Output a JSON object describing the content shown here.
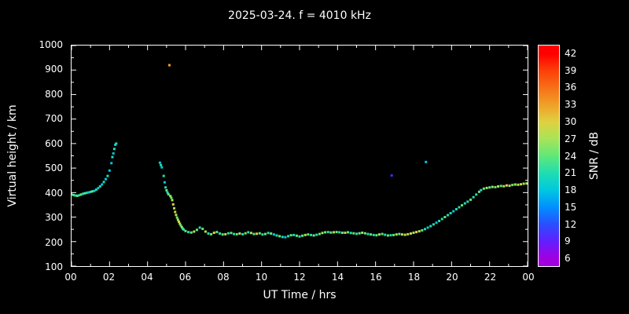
{
  "chart_data": {
    "type": "scatter",
    "title": "2025-03-24. f = 4010 kHz",
    "xlabel": "UT Time / hrs",
    "ylabel": "Virtual height / km",
    "xlim": [
      0,
      24
    ],
    "ylim": [
      100,
      1000
    ],
    "grid": false,
    "background": "#000000",
    "frame_color": "#ffffff",
    "x_ticks": {
      "values": [
        0,
        2,
        4,
        6,
        8,
        10,
        12,
        14,
        16,
        18,
        20,
        22,
        24
      ],
      "labels": [
        "00",
        "02",
        "04",
        "06",
        "08",
        "10",
        "12",
        "14",
        "16",
        "18",
        "20",
        "22",
        "00"
      ]
    },
    "y_ticks": [
      100,
      200,
      300,
      400,
      500,
      600,
      700,
      800,
      900,
      1000
    ],
    "colorbar": {
      "label": "SNR / dB",
      "ticks": [
        6,
        9,
        12,
        15,
        18,
        21,
        24,
        27,
        30,
        33,
        36,
        39,
        42
      ],
      "range": [
        4.5,
        43.5
      ],
      "stops": [
        {
          "v": 6,
          "c": "#a000e0"
        },
        {
          "v": 9,
          "c": "#6020ff"
        },
        {
          "v": 12,
          "c": "#2850ff"
        },
        {
          "v": 15,
          "c": "#0090ff"
        },
        {
          "v": 18,
          "c": "#00c8e0"
        },
        {
          "v": 21,
          "c": "#20ddb0"
        },
        {
          "v": 24,
          "c": "#60e878"
        },
        {
          "v": 27,
          "c": "#a8e458"
        },
        {
          "v": 30,
          "c": "#e0d040"
        },
        {
          "v": 33,
          "c": "#f0a028"
        },
        {
          "v": 36,
          "c": "#f87018"
        },
        {
          "v": 39,
          "c": "#fc4008"
        },
        {
          "v": 42,
          "c": "#ff0000"
        }
      ]
    },
    "points": [
      [
        0.0,
        393,
        21
      ],
      [
        0.1,
        390,
        24
      ],
      [
        0.2,
        388,
        21
      ],
      [
        0.3,
        387,
        24
      ],
      [
        0.4,
        389,
        21
      ],
      [
        0.5,
        392,
        24
      ],
      [
        0.6,
        395,
        21
      ],
      [
        0.7,
        397,
        24
      ],
      [
        0.8,
        399,
        21
      ],
      [
        0.9,
        401,
        18
      ],
      [
        1.0,
        403,
        21
      ],
      [
        1.1,
        405,
        24
      ],
      [
        1.2,
        407,
        18
      ],
      [
        1.3,
        412,
        21
      ],
      [
        1.4,
        418,
        18
      ],
      [
        1.5,
        425,
        21
      ],
      [
        1.6,
        433,
        18
      ],
      [
        1.7,
        443,
        21
      ],
      [
        1.8,
        455,
        18
      ],
      [
        1.9,
        468,
        21
      ],
      [
        2.0,
        490,
        18
      ],
      [
        2.1,
        520,
        18
      ],
      [
        2.15,
        545,
        21
      ],
      [
        2.2,
        560,
        18
      ],
      [
        2.25,
        578,
        21
      ],
      [
        2.3,
        595,
        18
      ],
      [
        2.35,
        600,
        21
      ],
      [
        4.65,
        522,
        18
      ],
      [
        4.7,
        512,
        21
      ],
      [
        4.75,
        503,
        18
      ],
      [
        4.85,
        468,
        21
      ],
      [
        4.9,
        442,
        18
      ],
      [
        4.95,
        421,
        21
      ],
      [
        5.0,
        409,
        24
      ],
      [
        5.05,
        400,
        21
      ],
      [
        5.1,
        393,
        24
      ],
      [
        5.15,
        920,
        33
      ],
      [
        5.2,
        386,
        27
      ],
      [
        5.25,
        379,
        24
      ],
      [
        5.3,
        369,
        27
      ],
      [
        5.35,
        352,
        30
      ],
      [
        5.4,
        336,
        27
      ],
      [
        5.45,
        321,
        30
      ],
      [
        5.5,
        309,
        27
      ],
      [
        5.55,
        298,
        24
      ],
      [
        5.6,
        289,
        27
      ],
      [
        5.65,
        281,
        30
      ],
      [
        5.7,
        273,
        27
      ],
      [
        5.75,
        266,
        24
      ],
      [
        5.8,
        259,
        27
      ],
      [
        5.85,
        253,
        24
      ],
      [
        5.9,
        249,
        21
      ],
      [
        6.0,
        243,
        24
      ],
      [
        6.15,
        239,
        21
      ],
      [
        6.3,
        237,
        24
      ],
      [
        6.45,
        241,
        27
      ],
      [
        6.6,
        248,
        24
      ],
      [
        6.75,
        257,
        21
      ],
      [
        6.9,
        252,
        24
      ],
      [
        7.05,
        241,
        27
      ],
      [
        7.2,
        233,
        21
      ],
      [
        7.35,
        230,
        24
      ],
      [
        7.5,
        236,
        30
      ],
      [
        7.65,
        239,
        24
      ],
      [
        7.8,
        233,
        21
      ],
      [
        7.95,
        229,
        24
      ],
      [
        8.1,
        230,
        27
      ],
      [
        8.25,
        234,
        21
      ],
      [
        8.4,
        235,
        24
      ],
      [
        8.55,
        231,
        21
      ],
      [
        8.7,
        230,
        24
      ],
      [
        8.85,
        233,
        27
      ],
      [
        9.0,
        230,
        21
      ],
      [
        9.15,
        234,
        24
      ],
      [
        9.3,
        238,
        21
      ],
      [
        9.45,
        235,
        27
      ],
      [
        9.6,
        231,
        24
      ],
      [
        9.75,
        232,
        30
      ],
      [
        9.9,
        234,
        24
      ],
      [
        10.05,
        229,
        21
      ],
      [
        10.2,
        231,
        24
      ],
      [
        10.35,
        235,
        21
      ],
      [
        10.5,
        233,
        24
      ],
      [
        10.65,
        229,
        18
      ],
      [
        10.8,
        225,
        21
      ],
      [
        10.95,
        222,
        24
      ],
      [
        11.1,
        219,
        21
      ],
      [
        11.25,
        218,
        18
      ],
      [
        11.4,
        222,
        21
      ],
      [
        11.55,
        226,
        24
      ],
      [
        11.7,
        227,
        21
      ],
      [
        11.85,
        224,
        24
      ],
      [
        12.0,
        221,
        21
      ],
      [
        12.15,
        224,
        24
      ],
      [
        12.3,
        227,
        27
      ],
      [
        12.45,
        229,
        24
      ],
      [
        12.6,
        227,
        21
      ],
      [
        12.75,
        225,
        24
      ],
      [
        12.9,
        228,
        21
      ],
      [
        13.05,
        231,
        24
      ],
      [
        13.2,
        235,
        27
      ],
      [
        13.35,
        238,
        24
      ],
      [
        13.5,
        239,
        21
      ],
      [
        13.65,
        237,
        24
      ],
      [
        13.8,
        238,
        27
      ],
      [
        13.95,
        239,
        24
      ],
      [
        14.1,
        238,
        21
      ],
      [
        14.25,
        236,
        24
      ],
      [
        14.4,
        236,
        27
      ],
      [
        14.55,
        238,
        24
      ],
      [
        14.7,
        235,
        21
      ],
      [
        14.85,
        234,
        24
      ],
      [
        15.0,
        232,
        21
      ],
      [
        15.15,
        234,
        24
      ],
      [
        15.3,
        236,
        27
      ],
      [
        15.45,
        234,
        24
      ],
      [
        15.6,
        231,
        21
      ],
      [
        15.75,
        229,
        24
      ],
      [
        15.9,
        227,
        21
      ],
      [
        16.05,
        226,
        24
      ],
      [
        16.2,
        229,
        27
      ],
      [
        16.35,
        231,
        24
      ],
      [
        16.5,
        228,
        21
      ],
      [
        16.65,
        225,
        24
      ],
      [
        16.8,
        226,
        21
      ],
      [
        16.95,
        227,
        24
      ],
      [
        17.1,
        229,
        27
      ],
      [
        17.25,
        231,
        24
      ],
      [
        17.4,
        229,
        27
      ],
      [
        17.55,
        228,
        30
      ],
      [
        17.7,
        230,
        27
      ],
      [
        17.85,
        233,
        30
      ],
      [
        18.0,
        236,
        27
      ],
      [
        18.15,
        239,
        30
      ],
      [
        18.3,
        242,
        27
      ],
      [
        18.45,
        246,
        24
      ],
      [
        16.85,
        470,
        9
      ],
      [
        18.65,
        525,
        18
      ],
      [
        18.6,
        251,
        21
      ],
      [
        18.75,
        257,
        18
      ],
      [
        18.9,
        263,
        21
      ],
      [
        19.05,
        270,
        21
      ],
      [
        19.2,
        277,
        18
      ],
      [
        19.35,
        284,
        21
      ],
      [
        19.5,
        292,
        21
      ],
      [
        19.65,
        300,
        24
      ],
      [
        19.8,
        308,
        21
      ],
      [
        19.95,
        316,
        21
      ],
      [
        20.1,
        324,
        18
      ],
      [
        20.25,
        332,
        21
      ],
      [
        20.4,
        340,
        21
      ],
      [
        20.55,
        348,
        24
      ],
      [
        20.7,
        356,
        21
      ],
      [
        20.85,
        363,
        21
      ],
      [
        21.0,
        371,
        24
      ],
      [
        21.15,
        381,
        21
      ],
      [
        21.3,
        392,
        21
      ],
      [
        21.45,
        403,
        24
      ],
      [
        21.55,
        410,
        21
      ],
      [
        21.7,
        416,
        24
      ],
      [
        21.85,
        419,
        27
      ],
      [
        22.0,
        421,
        24
      ],
      [
        22.15,
        423,
        27
      ],
      [
        22.3,
        422,
        24
      ],
      [
        22.45,
        425,
        27
      ],
      [
        22.6,
        427,
        24
      ],
      [
        22.75,
        426,
        27
      ],
      [
        22.9,
        429,
        30
      ],
      [
        23.05,
        428,
        27
      ],
      [
        23.2,
        431,
        24
      ],
      [
        23.35,
        433,
        27
      ],
      [
        23.5,
        432,
        27
      ],
      [
        23.65,
        434,
        30
      ],
      [
        23.8,
        436,
        27
      ],
      [
        23.95,
        437,
        27
      ]
    ]
  }
}
